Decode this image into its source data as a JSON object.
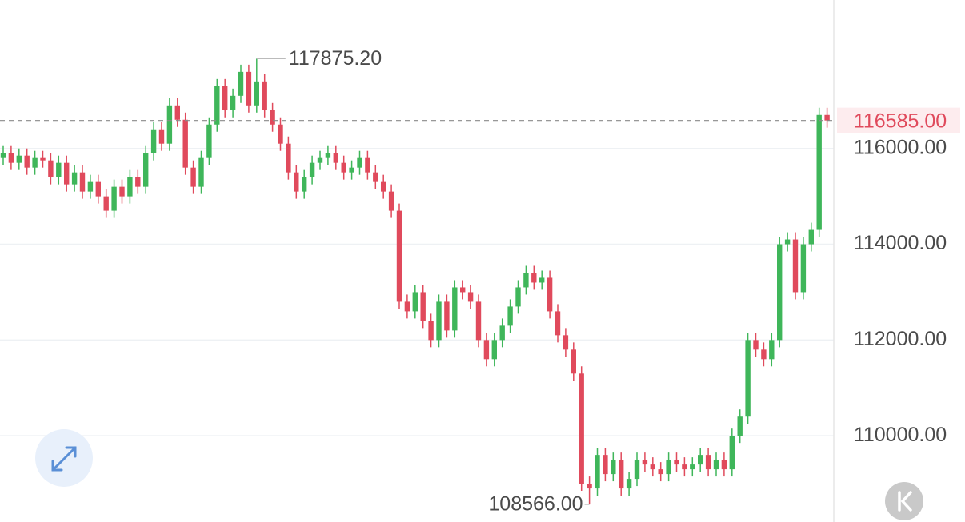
{
  "chart_data": {
    "type": "candlestick",
    "ylim": [
      108200,
      119100
    ],
    "yticks": [
      {
        "value": 110000,
        "label": "110000.00"
      },
      {
        "value": 112000,
        "label": "112000.00"
      },
      {
        "value": 114000,
        "label": "114000.00"
      },
      {
        "value": 116000,
        "label": "116000.00"
      }
    ],
    "grid": true,
    "up_color": "#3fb65a",
    "down_color": "#e04a5c",
    "last_price": {
      "value": 116585,
      "label": "116585.00"
    },
    "annotations": [
      {
        "value": 117875.2,
        "label": "117875.20"
      },
      {
        "value": 108566,
        "label": "108566.00"
      }
    ],
    "open": [
      115800,
      115900,
      115700,
      115850,
      115600,
      115800,
      115750,
      115400,
      115700,
      115250,
      115500,
      115100,
      115300,
      115000,
      114700,
      115200,
      115000,
      115400,
      115200,
      115900,
      116400,
      116100,
      116900,
      116600,
      115600,
      115200,
      115800,
      116500,
      117300,
      116800,
      117100,
      117600,
      116900,
      117400,
      116800,
      116500,
      116100,
      115500,
      115100,
      115400,
      115700,
      115800,
      115900,
      115700,
      115500,
      115600,
      115800,
      115500,
      115300,
      115100,
      114700,
      112800,
      112600,
      113000,
      112400,
      112000,
      112800,
      112200,
      113100,
      113000,
      112800,
      112000,
      111600,
      112000,
      112300,
      112700,
      113100,
      113400,
      113200,
      113300,
      112600,
      112100,
      111800,
      111300,
      109000,
      108900,
      109600,
      109200,
      109500,
      108900,
      109100,
      109500,
      109400,
      109300,
      109200,
      109500,
      109400,
      109300,
      109400,
      109600,
      109300,
      109500,
      109300,
      110000,
      110400,
      112000,
      111800,
      111600,
      112000,
      114000,
      114100,
      113000,
      114000,
      114300,
      116700
    ],
    "high": [
      116050,
      116050,
      116000,
      116000,
      115950,
      115950,
      115900,
      115850,
      115850,
      115650,
      115650,
      115450,
      115450,
      115150,
      115350,
      115350,
      115550,
      115550,
      116050,
      116550,
      116550,
      117050,
      117050,
      116750,
      115750,
      115950,
      116650,
      117450,
      117450,
      117250,
      117750,
      117750,
      117875.2,
      117550,
      116950,
      116650,
      116250,
      115650,
      115550,
      115850,
      115950,
      116050,
      116050,
      115850,
      115750,
      115950,
      115950,
      115650,
      115450,
      115250,
      114850,
      112950,
      113150,
      113150,
      112550,
      112950,
      112950,
      113250,
      113250,
      113150,
      112950,
      112150,
      112150,
      112450,
      112850,
      113250,
      113550,
      113550,
      113450,
      113450,
      112750,
      112250,
      111950,
      111450,
      109150,
      109750,
      109750,
      109650,
      109650,
      109250,
      109650,
      109650,
      109550,
      109450,
      109650,
      109650,
      109550,
      109550,
      109750,
      109750,
      109650,
      109650,
      110150,
      110550,
      112150,
      112150,
      111950,
      112150,
      114150,
      114250,
      114250,
      114150,
      114450,
      116850,
      116850
    ],
    "low": [
      115650,
      115550,
      115550,
      115450,
      115450,
      115600,
      115250,
      115250,
      115100,
      115100,
      114950,
      114950,
      114850,
      114550,
      114550,
      114850,
      114850,
      115050,
      115050,
      115750,
      115950,
      115950,
      116450,
      115450,
      115050,
      115050,
      115650,
      116350,
      116650,
      116650,
      116950,
      116750,
      116750,
      116650,
      116350,
      115950,
      115350,
      114950,
      114950,
      115250,
      115550,
      115650,
      115550,
      115350,
      115350,
      115450,
      115350,
      115150,
      114950,
      114550,
      112650,
      112450,
      112450,
      112250,
      111850,
      111850,
      112050,
      112050,
      112850,
      112650,
      111850,
      111450,
      111450,
      111850,
      112150,
      112550,
      112950,
      113050,
      113050,
      112450,
      111950,
      111650,
      111150,
      108850,
      108566,
      108750,
      109050,
      109050,
      108750,
      108750,
      108950,
      109250,
      109150,
      109050,
      109050,
      109250,
      109150,
      109150,
      109250,
      109150,
      109150,
      109150,
      109150,
      109850,
      110250,
      111650,
      111450,
      111450,
      111850,
      113850,
      112850,
      112850,
      113850,
      114150,
      116435
    ],
    "close": [
      115900,
      115700,
      115850,
      115600,
      115800,
      115750,
      115400,
      115700,
      115250,
      115500,
      115100,
      115300,
      115000,
      114700,
      115200,
      115000,
      115400,
      115200,
      115900,
      116400,
      116100,
      116900,
      116600,
      115600,
      115200,
      115800,
      116500,
      117300,
      116800,
      117100,
      117600,
      116900,
      117400,
      116800,
      116500,
      116100,
      115500,
      115100,
      115400,
      115700,
      115800,
      115900,
      115700,
      115500,
      115600,
      115800,
      115500,
      115300,
      115100,
      114700,
      112800,
      112600,
      113000,
      112400,
      112000,
      112800,
      112200,
      113100,
      113000,
      112800,
      112000,
      111600,
      112000,
      112300,
      112700,
      113100,
      113400,
      113200,
      113300,
      112600,
      112100,
      111800,
      111300,
      109000,
      108900,
      109600,
      109200,
      109500,
      108900,
      109100,
      109500,
      109400,
      109300,
      109200,
      109500,
      109400,
      109300,
      109400,
      109600,
      109300,
      109500,
      109300,
      110000,
      110400,
      112000,
      111800,
      111600,
      112000,
      114000,
      114100,
      113000,
      114000,
      114300,
      116700,
      116585
    ]
  }
}
